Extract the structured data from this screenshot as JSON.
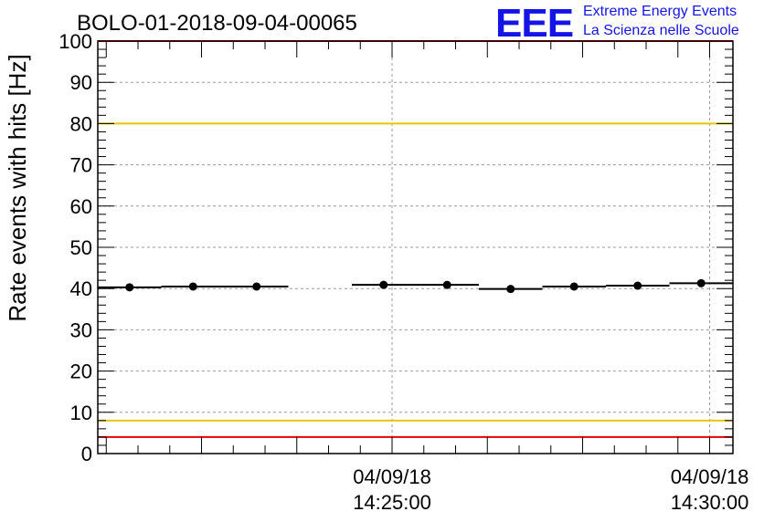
{
  "chart_data": {
    "type": "scatter",
    "title": "BOLO-01-2018-09-04-00065",
    "ylabel": "Rate events with hits [Hz]",
    "xlabel": "",
    "ylim": [
      0,
      100
    ],
    "yticks": [
      0,
      10,
      20,
      30,
      40,
      50,
      60,
      70,
      80,
      90,
      100
    ],
    "xlim": [
      "2018-09-04 14:20:22",
      "2018-09-04 14:30:22"
    ],
    "x_tick_labels": [
      {
        "x": "2018-09-04 14:25:00",
        "date": "04/09/18",
        "time": "14:25:00"
      },
      {
        "x": "2018-09-04 14:30:00",
        "date": "04/09/18",
        "time": "14:30:00"
      }
    ],
    "grid": true,
    "points": [
      {
        "x_start": "2018-09-04 14:20:22",
        "x_end": "2018-09-04 14:21:22",
        "y": 40.3
      },
      {
        "x_start": "2018-09-04 14:21:22",
        "x_end": "2018-09-04 14:22:22",
        "y": 40.5
      },
      {
        "x_start": "2018-09-04 14:22:22",
        "x_end": "2018-09-04 14:23:22",
        "y": 40.5
      },
      {
        "x_start": "2018-09-04 14:24:22",
        "x_end": "2018-09-04 14:25:22",
        "y": 40.9
      },
      {
        "x_start": "2018-09-04 14:25:22",
        "x_end": "2018-09-04 14:26:22",
        "y": 40.9
      },
      {
        "x_start": "2018-09-04 14:26:22",
        "x_end": "2018-09-04 14:27:22",
        "y": 39.9
      },
      {
        "x_start": "2018-09-04 14:27:22",
        "x_end": "2018-09-04 14:28:22",
        "y": 40.5
      },
      {
        "x_start": "2018-09-04 14:28:22",
        "x_end": "2018-09-04 14:29:22",
        "y": 40.7
      },
      {
        "x_start": "2018-09-04 14:29:22",
        "x_end": "2018-09-04 14:30:22",
        "y": 41.3
      }
    ],
    "threshold_lines": [
      {
        "y": 100,
        "color": "#e60000"
      },
      {
        "y": 80,
        "color": "#e6c800"
      },
      {
        "y": 8,
        "color": "#e6c800"
      },
      {
        "y": 4,
        "color": "#e60000"
      }
    ]
  },
  "logo": {
    "mark": "EEE",
    "line1": "Extreme Energy Events",
    "line2": "La Scienza nelle Scuole",
    "color": "#1414e6"
  }
}
